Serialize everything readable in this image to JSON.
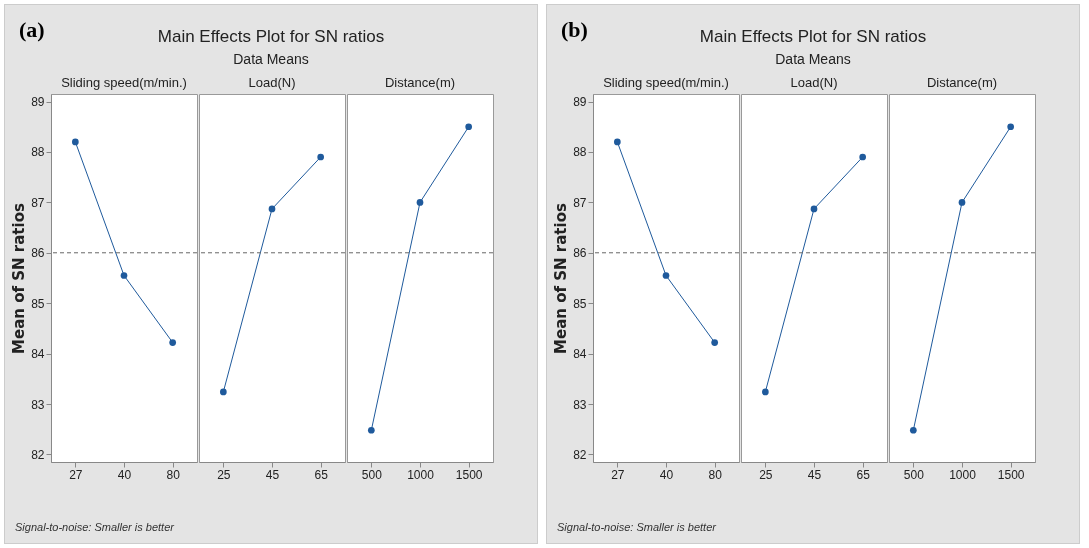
{
  "chart_data": [
    {
      "type": "line",
      "annotations": [
        "(a)",
        "Signal-to-noise: Smaller is better"
      ],
      "ylabel": "Mean of SN ratios",
      "xlabel": "Sliding speed(m/min.)",
      "categories": [
        "27",
        "40",
        "80"
      ],
      "values": [
        88.2,
        85.55,
        84.22
      ],
      "color": "#1f5a9c",
      "marker": "circle",
      "ylim": [
        81.85,
        89.15
      ],
      "yticks": [
        82,
        83,
        84,
        85,
        86,
        87,
        88,
        89
      ],
      "ref_lines": [
        {
          "axis": "y",
          "value": 86,
          "line_style": "dashed"
        }
      ]
    },
    {
      "type": "line",
      "title": "Main Effects Plot for SN ratios",
      "subtitle": "Data Means",
      "xlabel": "Load(N)",
      "categories": [
        "25",
        "45",
        "65"
      ],
      "values": [
        83.24,
        86.87,
        87.9
      ],
      "color": "#1f5a9c",
      "marker": "circle",
      "ylim": [
        81.85,
        89.15
      ],
      "yticks": [
        82,
        83,
        84,
        85,
        86,
        87,
        88,
        89
      ],
      "tick_labels": "x",
      "ref_lines": [
        {
          "axis": "y",
          "value": 86,
          "line_style": "dashed"
        }
      ]
    },
    {
      "type": "line",
      "xlabel": "Distance(m)",
      "categories": [
        "500",
        "1000",
        "1500"
      ],
      "values": [
        82.48,
        87.0,
        88.5
      ],
      "color": "#1f5a9c",
      "marker": "circle",
      "ylim": [
        81.85,
        89.15
      ],
      "yticks": [
        82,
        83,
        84,
        85,
        86,
        87,
        88,
        89
      ],
      "tick_labels": "x",
      "ref_lines": [
        {
          "axis": "y",
          "value": 86,
          "line_style": "dashed"
        }
      ]
    },
    {
      "type": "line",
      "annotations": [
        "(b)",
        "Signal-to-noise: Smaller is better"
      ],
      "ylabel": "Mean of SN ratios",
      "xlabel": "Sliding speed(m/min.)",
      "categories": [
        "27",
        "40",
        "80"
      ],
      "values": [
        88.2,
        85.55,
        84.22
      ],
      "color": "#1f5a9c",
      "marker": "circle",
      "ylim": [
        81.85,
        89.15
      ],
      "yticks": [
        82,
        83,
        84,
        85,
        86,
        87,
        88,
        89
      ],
      "ref_lines": [
        {
          "axis": "y",
          "value": 86,
          "line_style": "dashed"
        }
      ]
    },
    {
      "type": "line",
      "title": "Main Effects Plot for SN ratios",
      "subtitle": "Data Means",
      "xlabel": "Load(N)",
      "categories": [
        "25",
        "45",
        "65"
      ],
      "values": [
        83.24,
        86.87,
        87.9
      ],
      "color": "#1f5a9c",
      "marker": "circle",
      "ylim": [
        81.85,
        89.15
      ],
      "yticks": [
        82,
        83,
        84,
        85,
        86,
        87,
        88,
        89
      ],
      "tick_labels": "x",
      "ref_lines": [
        {
          "axis": "y",
          "value": 86,
          "line_style": "dashed"
        }
      ]
    },
    {
      "type": "line",
      "xlabel": "Distance(m)",
      "categories": [
        "500",
        "1000",
        "1500"
      ],
      "values": [
        82.48,
        87.0,
        88.5
      ],
      "color": "#1f5a9c",
      "marker": "circle",
      "ylim": [
        81.85,
        89.15
      ],
      "yticks": [
        82,
        83,
        84,
        85,
        86,
        87,
        88,
        89
      ],
      "tick_labels": "x",
      "ref_lines": [
        {
          "axis": "y",
          "value": 86,
          "line_style": "dashed"
        }
      ]
    }
  ]
}
